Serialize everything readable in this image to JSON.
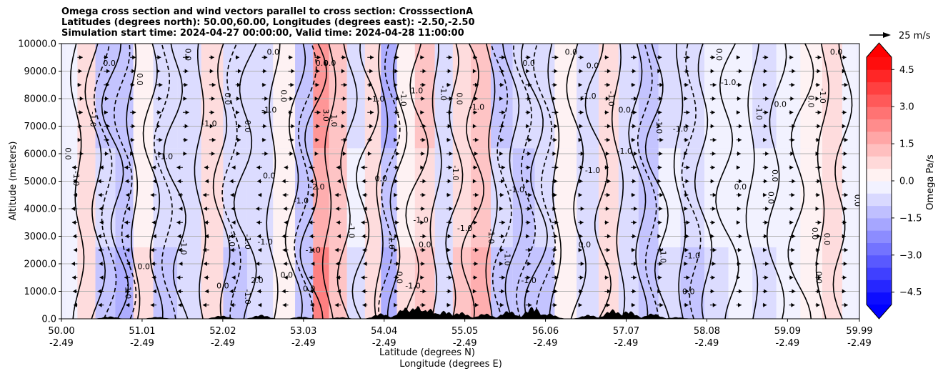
{
  "title_lines": [
    "Omega cross section and wind vectors parallel to cross section: CrosssectionA",
    "Latitudes (degrees north): 50.00,60.00, Longitudes (degrees east): -2.50,-2.50",
    "Simulation start time: 2024-04-27 00:00:00, Valid time: 2024-04-28 11:00:00"
  ],
  "chart_data": {
    "type": "heatmap",
    "title": "Omega cross section and wind vectors parallel to cross section: CrosssectionA",
    "ylabel": "Altitude (meters)",
    "xlabel_line1": "Latitude (degrees N)",
    "xlabel_line2": "Longitude (degrees E)",
    "ylim": [
      0,
      10000
    ],
    "xlim": [
      50.0,
      59.99
    ],
    "y_ticks": [
      0,
      1000,
      2000,
      3000,
      4000,
      5000,
      6000,
      7000,
      8000,
      9000,
      10000
    ],
    "y_tick_labels": [
      "0.0",
      "1000.0",
      "2000.0",
      "3000.0",
      "4000.0",
      "5000.0",
      "6000.0",
      "7000.0",
      "8000.0",
      "9000.0",
      "10000.0"
    ],
    "x_ticks": [
      50.0,
      51.01,
      52.02,
      53.03,
      54.04,
      55.05,
      56.06,
      57.07,
      58.08,
      59.09,
      59.99
    ],
    "x_tick_labels_lat": [
      "50.00",
      "51.01",
      "52.02",
      "53.03",
      "54.04",
      "55.05",
      "56.06",
      "57.07",
      "58.08",
      "59.09",
      "59.99"
    ],
    "x_tick_labels_lon": [
      "-2.49",
      "-2.49",
      "-2.49",
      "-2.49",
      "-2.49",
      "-2.49",
      "-2.49",
      "-2.49",
      "-2.49",
      "-2.49",
      "-2.49"
    ],
    "grid": "horizontal",
    "colorbar": {
      "label": "Omega Pa/s",
      "min": -5.0,
      "max": 5.0,
      "levels_step": 0.5,
      "ticks": [
        4.5,
        3.0,
        1.5,
        0.0,
        -1.5,
        -3.0,
        -4.5
      ],
      "tick_labels": [
        "4.5",
        "3.0",
        "1.5",
        "0.0",
        "−1.5",
        "−3.0",
        "−4.5"
      ],
      "colormap": "bwr",
      "extend": "both"
    },
    "contour_levels": [
      -1.0,
      0.0,
      1.0,
      3.0
    ],
    "wind_key": {
      "value": 25,
      "label": "25 m/s"
    },
    "omega_bands": [
      {
        "lat": 50.1,
        "value": -0.4
      },
      {
        "lat": 50.3,
        "value": 0.6
      },
      {
        "lat": 50.55,
        "value": -1.2
      },
      {
        "lat": 50.8,
        "value": -1.6
      },
      {
        "lat": 51.0,
        "value": 0.5
      },
      {
        "lat": 51.3,
        "value": -1.0
      },
      {
        "lat": 51.6,
        "value": -0.8
      },
      {
        "lat": 51.9,
        "value": 0.7
      },
      {
        "lat": 52.15,
        "value": -1.1
      },
      {
        "lat": 52.5,
        "value": -0.6
      },
      {
        "lat": 52.8,
        "value": 0.4
      },
      {
        "lat": 53.05,
        "value": -1.3
      },
      {
        "lat": 53.25,
        "value": 2.6
      },
      {
        "lat": 53.45,
        "value": 1.2
      },
      {
        "lat": 53.7,
        "value": -0.7
      },
      {
        "lat": 53.9,
        "value": 0.9
      },
      {
        "lat": 54.1,
        "value": -1.8
      },
      {
        "lat": 54.3,
        "value": 0.5
      },
      {
        "lat": 54.55,
        "value": 1.3
      },
      {
        "lat": 54.8,
        "value": -0.9
      },
      {
        "lat": 55.0,
        "value": 1.1
      },
      {
        "lat": 55.25,
        "value": 1.6
      },
      {
        "lat": 55.5,
        "value": -1.4
      },
      {
        "lat": 55.8,
        "value": -1.1
      },
      {
        "lat": 56.05,
        "value": -1.0
      },
      {
        "lat": 56.3,
        "value": 0.4
      },
      {
        "lat": 56.6,
        "value": -0.8
      },
      {
        "lat": 56.85,
        "value": 0.8
      },
      {
        "lat": 57.1,
        "value": -0.9
      },
      {
        "lat": 57.35,
        "value": -1.2
      },
      {
        "lat": 57.6,
        "value": -0.6
      },
      {
        "lat": 57.9,
        "value": -1.0
      },
      {
        "lat": 58.2,
        "value": -0.5
      },
      {
        "lat": 58.5,
        "value": -0.3
      },
      {
        "lat": 58.8,
        "value": -0.6
      },
      {
        "lat": 59.1,
        "value": -0.4
      },
      {
        "lat": 59.4,
        "value": 0.3
      },
      {
        "lat": 59.65,
        "value": 0.9
      },
      {
        "lat": 59.9,
        "value": -0.4
      }
    ],
    "contour_labels": [
      {
        "text": "-1.0",
        "lat": 50.36,
        "alt": 7250
      },
      {
        "text": "0.0",
        "lat": 50.05,
        "alt": 6000
      },
      {
        "text": "-1.0",
        "lat": 50.15,
        "alt": 5100
      },
      {
        "text": "0.0",
        "lat": 50.6,
        "alt": 9200
      },
      {
        "text": "0.0",
        "lat": 50.95,
        "alt": 8700
      },
      {
        "text": "-1.0",
        "lat": 51.3,
        "alt": 5800
      },
      {
        "text": "0.0",
        "lat": 51.55,
        "alt": 9600
      },
      {
        "text": "-1.0",
        "lat": 51.5,
        "alt": 2600
      },
      {
        "text": "0.0",
        "lat": 51.03,
        "alt": 1800
      },
      {
        "text": "-1.0",
        "lat": 50.8,
        "alt": 1000
      },
      {
        "text": "0.0",
        "lat": 52.05,
        "alt": 8000
      },
      {
        "text": "-1.0",
        "lat": 51.85,
        "alt": 7000
      },
      {
        "text": "0.0",
        "lat": 52.3,
        "alt": 7000
      },
      {
        "text": "-1.0",
        "lat": 52.1,
        "alt": 2900
      },
      {
        "text": "-1.0",
        "lat": 52.3,
        "alt": 2800
      },
      {
        "text": "0.0",
        "lat": 52.02,
        "alt": 1100
      },
      {
        "text": "-1.0",
        "lat": 52.3,
        "alt": 800
      },
      {
        "text": "2.0",
        "lat": 52.45,
        "alt": 1300
      },
      {
        "text": "0.0",
        "lat": 52.6,
        "alt": 5100
      },
      {
        "text": "-1.0",
        "lat": 52.6,
        "alt": 7500
      },
      {
        "text": "0.0",
        "lat": 52.65,
        "alt": 9600
      },
      {
        "text": "0.0",
        "lat": 52.75,
        "alt": 8100
      },
      {
        "text": "-1.0",
        "lat": 52.55,
        "alt": 2700
      },
      {
        "text": "0.0",
        "lat": 52.82,
        "alt": 1500
      },
      {
        "text": "-1.0",
        "lat": 53.0,
        "alt": 4200
      },
      {
        "text": "-2.0",
        "lat": 53.2,
        "alt": 4700
      },
      {
        "text": "0.0",
        "lat": 53.26,
        "alt": 9200
      },
      {
        "text": "0.0",
        "lat": 53.36,
        "alt": 9200
      },
      {
        "text": "3.0",
        "lat": 53.28,
        "alt": 7400
      },
      {
        "text": "1.0",
        "lat": 53.38,
        "alt": 7200
      },
      {
        "text": "-1.0",
        "lat": 53.15,
        "alt": 2400
      },
      {
        "text": "0.0",
        "lat": 53.1,
        "alt": 1000
      },
      {
        "text": "-1.0",
        "lat": 53.6,
        "alt": 3200
      },
      {
        "text": "-1.0",
        "lat": 53.95,
        "alt": 7900
      },
      {
        "text": "0.0",
        "lat": 54.0,
        "alt": 5000
      },
      {
        "text": "-1.0",
        "lat": 54.1,
        "alt": 2800
      },
      {
        "text": "0.0",
        "lat": 54.2,
        "alt": 1500
      },
      {
        "text": "-1.0",
        "lat": 54.25,
        "alt": 8000
      },
      {
        "text": "1.0",
        "lat": 54.45,
        "alt": 8200
      },
      {
        "text": "-1.0",
        "lat": 54.5,
        "alt": 3500
      },
      {
        "text": "0.0",
        "lat": 54.55,
        "alt": 2600
      },
      {
        "text": "-1.0",
        "lat": 54.4,
        "alt": 1100
      },
      {
        "text": "-1.0",
        "lat": 54.75,
        "alt": 8200
      },
      {
        "text": "0.0",
        "lat": 54.95,
        "alt": 8000
      },
      {
        "text": "-1.0",
        "lat": 54.9,
        "alt": 5300
      },
      {
        "text": "-1.0",
        "lat": 55.05,
        "alt": 3200
      },
      {
        "text": "-1.0",
        "lat": 55.35,
        "alt": 3000
      },
      {
        "text": "-1.0",
        "lat": 55.2,
        "alt": 7600
      },
      {
        "text": "-1.0",
        "lat": 55.7,
        "alt": 4600
      },
      {
        "text": "-1.0",
        "lat": 55.55,
        "alt": 2200
      },
      {
        "text": "-1.0",
        "lat": 55.85,
        "alt": 1300
      },
      {
        "text": "0.0",
        "lat": 55.85,
        "alt": 9200
      },
      {
        "text": "0.0",
        "lat": 56.38,
        "alt": 9600
      },
      {
        "text": "-1.0",
        "lat": 56.6,
        "alt": 8000
      },
      {
        "text": "0.0",
        "lat": 56.55,
        "alt": 2600
      },
      {
        "text": "-1.0",
        "lat": 56.65,
        "alt": 5300
      },
      {
        "text": "0.0",
        "lat": 56.65,
        "alt": 9100
      },
      {
        "text": "-1.0",
        "lat": 56.85,
        "alt": 8000
      },
      {
        "text": "-1.0",
        "lat": 57.05,
        "alt": 6000
      },
      {
        "text": "0.0",
        "lat": 57.05,
        "alt": 7500
      },
      {
        "text": "-1.0",
        "lat": 57.45,
        "alt": 7000
      },
      {
        "text": "-1.0",
        "lat": 57.5,
        "alt": 2300
      },
      {
        "text": "-1.0",
        "lat": 57.75,
        "alt": 6800
      },
      {
        "text": "-1.0",
        "lat": 57.9,
        "alt": 2200
      },
      {
        "text": "0.0",
        "lat": 57.85,
        "alt": 900
      },
      {
        "text": "0.0",
        "lat": 58.2,
        "alt": 9600
      },
      {
        "text": "-1.0",
        "lat": 58.35,
        "alt": 8500
      },
      {
        "text": "0.0",
        "lat": 58.5,
        "alt": 4700
      },
      {
        "text": "-1.0",
        "lat": 58.7,
        "alt": 7500
      },
      {
        "text": "0.0",
        "lat": 58.85,
        "alt": 4400
      },
      {
        "text": "0.0",
        "lat": 58.9,
        "alt": 5200
      },
      {
        "text": "0.0",
        "lat": 59.0,
        "alt": 7700
      },
      {
        "text": "0.0",
        "lat": 59.35,
        "alt": 7900
      },
      {
        "text": "-1.0",
        "lat": 59.5,
        "alt": 8100
      },
      {
        "text": "0.0",
        "lat": 59.4,
        "alt": 3100
      },
      {
        "text": "0.0",
        "lat": 59.45,
        "alt": 1500
      },
      {
        "text": "0.0",
        "lat": 59.55,
        "alt": 2900
      },
      {
        "text": "0.0",
        "lat": 59.7,
        "alt": 9600
      },
      {
        "text": "0.0",
        "lat": 59.93,
        "alt": 4300
      }
    ],
    "terrain_peaks": [
      {
        "lat": 50.6,
        "alt": 90
      },
      {
        "lat": 51.2,
        "alt": 70
      },
      {
        "lat": 52.0,
        "alt": 120
      },
      {
        "lat": 52.5,
        "alt": 150
      },
      {
        "lat": 53.0,
        "alt": 80
      },
      {
        "lat": 53.5,
        "alt": 60
      },
      {
        "lat": 54.0,
        "alt": 200
      },
      {
        "lat": 54.3,
        "alt": 420
      },
      {
        "lat": 54.45,
        "alt": 480
      },
      {
        "lat": 54.6,
        "alt": 380
      },
      {
        "lat": 54.8,
        "alt": 300
      },
      {
        "lat": 55.0,
        "alt": 250
      },
      {
        "lat": 55.3,
        "alt": 200
      },
      {
        "lat": 55.6,
        "alt": 300
      },
      {
        "lat": 55.9,
        "alt": 450
      },
      {
        "lat": 56.1,
        "alt": 200
      },
      {
        "lat": 56.6,
        "alt": 150
      },
      {
        "lat": 56.9,
        "alt": 350
      },
      {
        "lat": 57.1,
        "alt": 300
      },
      {
        "lat": 57.4,
        "alt": 200
      },
      {
        "lat": 57.7,
        "alt": 60
      }
    ]
  }
}
